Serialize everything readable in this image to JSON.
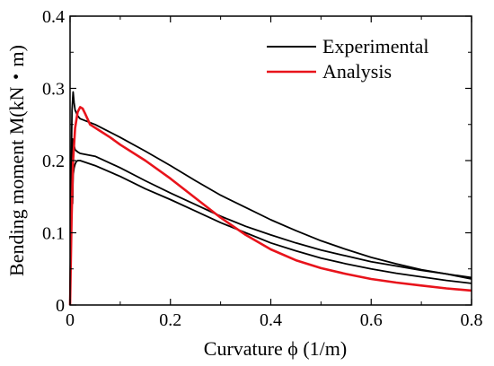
{
  "chart_data": {
    "type": "line",
    "xlabel": "Curvature  ϕ (1/m)",
    "ylabel": "Bending moment M(kN・m)",
    "xlim": [
      0,
      0.8
    ],
    "ylim": [
      0,
      0.4
    ],
    "x_ticks": [
      "0",
      "0.2",
      "0.4",
      "0.6",
      "0.8"
    ],
    "y_ticks": [
      "0",
      "0.1",
      "0.2",
      "0.3",
      "0.4"
    ],
    "x_tick_values": [
      0,
      0.2,
      0.4,
      0.6,
      0.8
    ],
    "y_tick_values": [
      0,
      0.1,
      0.2,
      0.3,
      0.4
    ],
    "grid": false,
    "legend_position": "top-right",
    "legend": [
      {
        "label": "Experimental",
        "color": "#000000"
      },
      {
        "label": "Analysis",
        "color": "#e8131b"
      }
    ],
    "series": [
      {
        "name": "Experimental",
        "color": "#000000",
        "x": [
          0,
          0.002,
          0.004,
          0.006,
          0.008,
          0.01,
          0.015,
          0.02,
          0.05,
          0.1,
          0.15,
          0.2,
          0.25,
          0.3,
          0.35,
          0.4,
          0.45,
          0.5,
          0.55,
          0.6,
          0.65,
          0.7,
          0.75,
          0.8
        ],
        "y": [
          0,
          0.18,
          0.27,
          0.295,
          0.28,
          0.27,
          0.262,
          0.258,
          0.25,
          0.232,
          0.213,
          0.193,
          0.172,
          0.152,
          0.135,
          0.118,
          0.103,
          0.089,
          0.077,
          0.066,
          0.057,
          0.049,
          0.043,
          0.036
        ]
      },
      {
        "name": "Experimental",
        "color": "#000000",
        "x": [
          0,
          0.005,
          0.01,
          0.015,
          0.02,
          0.05,
          0.1,
          0.15,
          0.2,
          0.25,
          0.3,
          0.35,
          0.4,
          0.45,
          0.5,
          0.55,
          0.6,
          0.65,
          0.7,
          0.75,
          0.8
        ],
        "y": [
          0.003,
          0.23,
          0.215,
          0.212,
          0.21,
          0.206,
          0.19,
          0.172,
          0.155,
          0.139,
          0.123,
          0.109,
          0.097,
          0.086,
          0.076,
          0.068,
          0.06,
          0.054,
          0.048,
          0.043,
          0.038
        ]
      },
      {
        "name": "Experimental",
        "color": "#000000",
        "x": [
          0.8,
          0.75,
          0.7,
          0.65,
          0.6,
          0.55,
          0.5,
          0.45,
          0.4,
          0.35,
          0.3,
          0.25,
          0.2,
          0.15,
          0.1,
          0.05,
          0.02,
          0.015,
          0.012,
          0.01,
          0.008,
          0.006,
          0.005
        ],
        "y": [
          0.03,
          0.034,
          0.039,
          0.044,
          0.05,
          0.057,
          0.065,
          0.075,
          0.086,
          0.1,
          0.114,
          0.13,
          0.146,
          0.161,
          0.178,
          0.193,
          0.2,
          0.2,
          0.198,
          0.195,
          0.19,
          0.18,
          0.14
        ]
      },
      {
        "name": "Analysis",
        "color": "#e8131b",
        "x": [
          0,
          0.003,
          0.006,
          0.01,
          0.015,
          0.02,
          0.025,
          0.03,
          0.04,
          0.06,
          0.08,
          0.1,
          0.15,
          0.2,
          0.25,
          0.3,
          0.35,
          0.4,
          0.45,
          0.5,
          0.55,
          0.6,
          0.65,
          0.7,
          0.75,
          0.8
        ],
        "y": [
          0,
          0.12,
          0.2,
          0.245,
          0.267,
          0.274,
          0.272,
          0.265,
          0.25,
          0.241,
          0.232,
          0.222,
          0.2,
          0.175,
          0.148,
          0.121,
          0.097,
          0.077,
          0.062,
          0.051,
          0.043,
          0.036,
          0.031,
          0.027,
          0.023,
          0.02
        ]
      }
    ]
  }
}
